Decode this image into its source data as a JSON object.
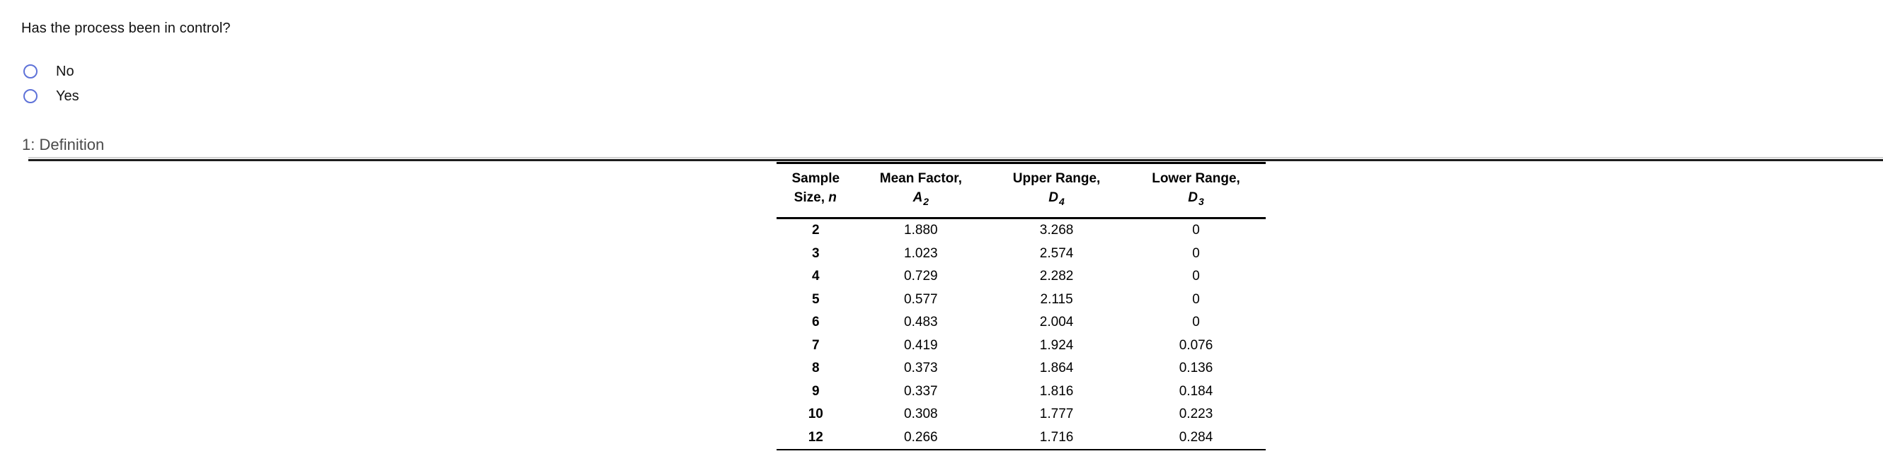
{
  "question": {
    "text": "Has the process been in control?",
    "options": [
      {
        "label": "No"
      },
      {
        "label": "Yes"
      }
    ]
  },
  "section": {
    "label": "1: Definition"
  },
  "table": {
    "headers": [
      {
        "line1": "Sample",
        "line2_prefix": "Size, ",
        "line2_var": "n",
        "line2_sub": ""
      },
      {
        "line1": "Mean Factor,",
        "line2_prefix": "",
        "line2_var": "A",
        "line2_sub": "2"
      },
      {
        "line1": "Upper Range,",
        "line2_prefix": "",
        "line2_var": "D",
        "line2_sub": "4"
      },
      {
        "line1": "Lower Range,",
        "line2_prefix": "",
        "line2_var": "D",
        "line2_sub": "3"
      }
    ],
    "rows": [
      [
        "2",
        "1.880",
        "3.268",
        "0"
      ],
      [
        "3",
        "1.023",
        "2.574",
        "0"
      ],
      [
        "4",
        "0.729",
        "2.282",
        "0"
      ],
      [
        "5",
        "0.577",
        "2.115",
        "0"
      ],
      [
        "6",
        "0.483",
        "2.004",
        "0"
      ],
      [
        "7",
        "0.419",
        "1.924",
        "0.076"
      ],
      [
        "8",
        "0.373",
        "1.864",
        "0.136"
      ],
      [
        "9",
        "0.337",
        "1.816",
        "0.184"
      ],
      [
        "10",
        "0.308",
        "1.777",
        "0.223"
      ],
      [
        "12",
        "0.266",
        "1.716",
        "0.284"
      ]
    ]
  },
  "colors": {
    "radio_outline": "#5e72d8",
    "section_text": "#4a4a4a",
    "divider_light": "#d4d4d4",
    "divider_dark": "#1d1d1d",
    "table_rule": "#000000"
  }
}
